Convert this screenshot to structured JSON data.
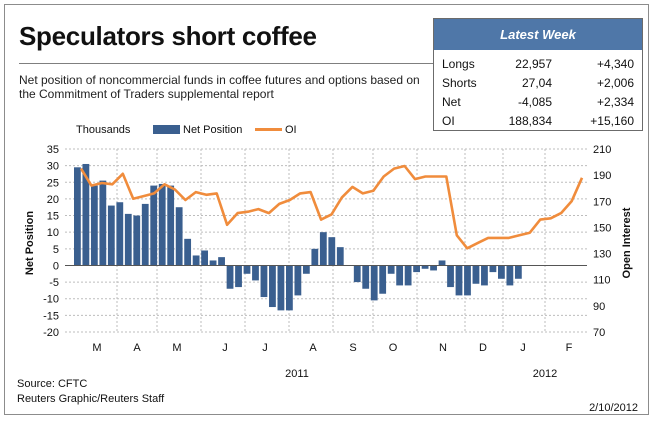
{
  "title": "Speculators short coffee",
  "subtitle": "Net position of noncommercial funds in coffee futures and options based on the Commitment of Traders supplemental report",
  "latest_week": {
    "header": "Latest Week",
    "rows": [
      {
        "label": "Longs",
        "value": "22,957",
        "change": "+4,340"
      },
      {
        "label": "Shorts",
        "value": "27,04",
        "change": "+2,006"
      },
      {
        "label": "Net",
        "value": "-4,085",
        "change": "+2,334"
      },
      {
        "label": "OI",
        "value": "188,834",
        "change": "+15,160"
      }
    ]
  },
  "chart_data": {
    "type": "bar",
    "unit_label": "Thousands",
    "ylabel_left": "Net Position",
    "ylabel_right": "Open Interest",
    "left_ylim": [
      -20,
      35
    ],
    "left_ticks": [
      "35",
      "30",
      "25",
      "20",
      "15",
      "10",
      "5",
      "0",
      "-5",
      "-10",
      "-15",
      "-20"
    ],
    "right_ylim": [
      70,
      210
    ],
    "right_ticks": [
      "210",
      "190",
      "170",
      "150",
      "130",
      "110",
      "90",
      "70"
    ],
    "month_labels": [
      "M",
      "A",
      "M",
      "J",
      "J",
      "A",
      "S",
      "O",
      "N",
      "D",
      "J",
      "F"
    ],
    "year_labels": [
      "2011",
      "2012"
    ],
    "grid": true,
    "legend_position": "top",
    "series": [
      {
        "name": "Net Position",
        "type": "bar",
        "color": "#3a5f8f",
        "values": [
          29.5,
          30.5,
          24,
          25.5,
          18,
          19,
          15.5,
          15,
          18.5,
          24,
          24.5,
          24,
          17.5,
          8,
          3,
          4.5,
          1.5,
          2.5,
          -7,
          -6.5,
          -2.5,
          -4.5,
          -9.5,
          -12.5,
          -13.5,
          -13.5,
          -9,
          -2.5,
          5,
          10,
          8.5,
          5.5,
          0,
          -5,
          -7,
          -10.5,
          -8.5,
          -2.5,
          -6,
          -6,
          -2,
          -1,
          -1.5,
          1.5,
          -6.5,
          -9,
          -9,
          -5.5,
          -6,
          -2,
          -4,
          -6,
          -4
        ]
      },
      {
        "name": "OI",
        "type": "line",
        "color": "#f08c3c",
        "values": [
          195,
          182,
          184,
          183,
          191,
          172,
          174,
          176,
          183,
          179,
          171,
          177,
          175,
          176,
          152,
          161,
          162,
          164,
          161,
          168,
          171,
          176,
          177,
          156,
          160,
          173,
          181,
          176,
          178,
          189,
          195,
          197,
          187,
          189,
          189,
          189,
          144,
          134,
          138,
          142,
          142,
          142,
          144,
          146,
          156,
          157,
          161,
          170,
          188
        ]
      }
    ]
  },
  "footer": {
    "source": "Source: CFTC",
    "credit": "Reuters Graphic/Reuters Staff",
    "date": "2/10/2012"
  }
}
